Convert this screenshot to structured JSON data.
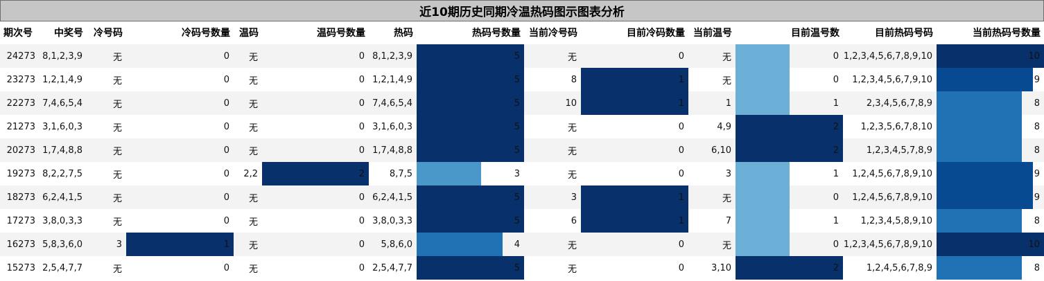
{
  "chart_data": {
    "type": "table",
    "title": "近10期历史同期冷温热码图示图表分析",
    "columns": [
      "期次号",
      "中奖号",
      "冷号码",
      "冷码号数量",
      "温码",
      "温码号数量",
      "热码",
      "热码号数量",
      "当前冷号码",
      "目前冷码数量",
      "当前温号",
      "目前温号数",
      "目前热码号码",
      "当前热码号数量"
    ],
    "rows": [
      [
        "24273",
        "8,1,2,3,9",
        "无",
        "0",
        "无",
        "0",
        "8,1,2,3,9",
        "5",
        "无",
        "0",
        "无",
        "0",
        "1,2,3,4,5,6,7,8,9,10",
        "10"
      ],
      [
        "23273",
        "1,2,1,4,9",
        "无",
        "0",
        "无",
        "0",
        "1,2,1,4,9",
        "5",
        "8",
        "1",
        "无",
        "0",
        "1,2,3,4,5,6,7,9,10",
        "9"
      ],
      [
        "22273",
        "7,4,6,5,4",
        "无",
        "0",
        "无",
        "0",
        "7,4,6,5,4",
        "5",
        "10",
        "1",
        "1",
        "1",
        "2,3,4,5,6,7,8,9",
        "8"
      ],
      [
        "21273",
        "3,1,6,0,3",
        "无",
        "0",
        "无",
        "0",
        "3,1,6,0,3",
        "5",
        "无",
        "0",
        "4,9",
        "2",
        "1,2,3,5,6,7,8,10",
        "8"
      ],
      [
        "20273",
        "1,7,4,8,8",
        "无",
        "0",
        "无",
        "0",
        "1,7,4,8,8",
        "5",
        "无",
        "0",
        "6,10",
        "2",
        "1,2,3,4,5,7,8,9",
        "8"
      ],
      [
        "19273",
        "8,2,2,7,5",
        "无",
        "0",
        "2,2",
        "2",
        "8,7,5",
        "3",
        "无",
        "0",
        "3",
        "1",
        "1,2,4,5,6,7,8,9,10",
        "9"
      ],
      [
        "18273",
        "6,2,4,1,5",
        "无",
        "0",
        "无",
        "0",
        "6,2,4,1,5",
        "5",
        "3",
        "1",
        "无",
        "0",
        "1,2,4,5,6,7,8,9,10",
        "9"
      ],
      [
        "17273",
        "3,8,0,3,3",
        "无",
        "0",
        "无",
        "0",
        "3,8,0,3,3",
        "5",
        "6",
        "1",
        "7",
        "1",
        "1,2,3,4,5,8,9,10",
        "8"
      ],
      [
        "16273",
        "5,8,3,6,0",
        "3",
        "1",
        "无",
        "0",
        "5,8,6,0",
        "4",
        "无",
        "0",
        "无",
        "0",
        "1,2,3,4,5,6,7,8,9,10",
        "10"
      ],
      [
        "15273",
        "2,5,4,7,7",
        "无",
        "0",
        "无",
        "0",
        "2,5,4,7,7",
        "5",
        "无",
        "0",
        "3,10",
        "2",
        "1,2,4,5,6,7,8,9",
        "8"
      ]
    ]
  }
}
